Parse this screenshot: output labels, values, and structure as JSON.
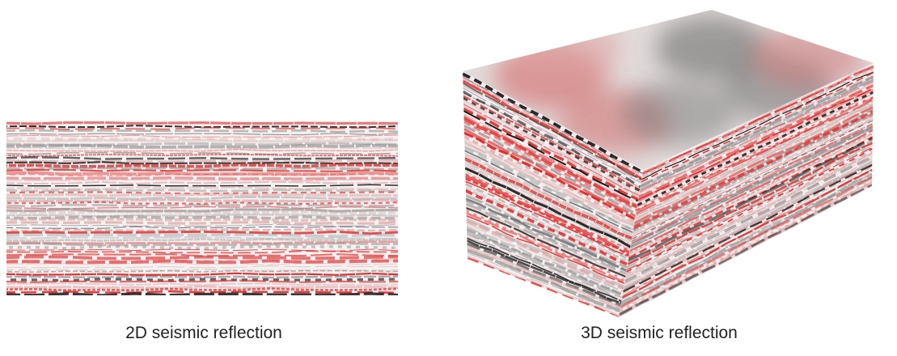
{
  "captions": {
    "left": "2D seismic reflection",
    "right": "3D seismic reflection"
  }
}
